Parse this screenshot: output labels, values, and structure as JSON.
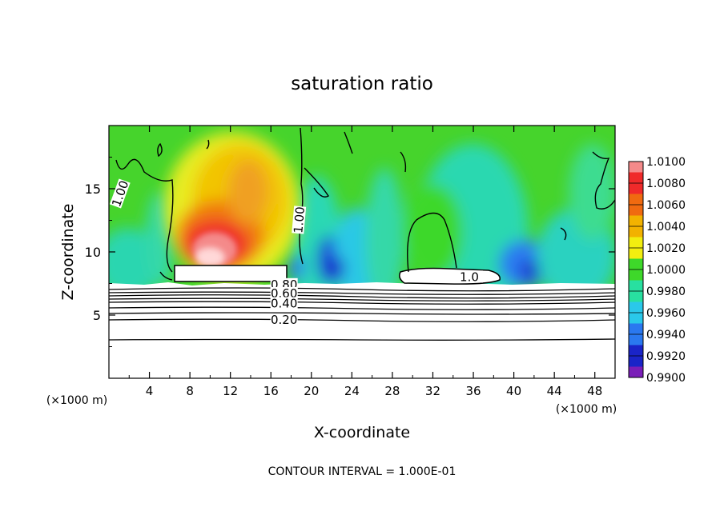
{
  "chart_data": {
    "type": "heatmap",
    "title": "saturation ratio",
    "xlabel": "X-coordinate",
    "ylabel": "Z-coordinate",
    "x_unit_left": "(×1000 m)",
    "x_unit_right": "(×1000 m)",
    "xlim": [
      0,
      50
    ],
    "ylim": [
      0,
      20
    ],
    "xticks": [
      "4",
      "8",
      "12",
      "16",
      "20",
      "24",
      "28",
      "32",
      "36",
      "40",
      "44",
      "48"
    ],
    "yticks": [
      "5",
      "10",
      "15"
    ],
    "footer": "CONTOUR INTERVAL = 1.000E-01",
    "colorbar": {
      "labels": [
        "1.0100",
        "1.0080",
        "1.0060",
        "1.0040",
        "1.0020",
        "1.0000",
        "0.9980",
        "0.9960",
        "0.9940",
        "0.9920",
        "0.9900"
      ],
      "colors": [
        "#f48a8a",
        "#f02a2a",
        "#f06a10",
        "#f2b200",
        "#f2ee10",
        "#3ed82a",
        "#28e0a0",
        "#2ac8ea",
        "#2a78f0",
        "#1a24c8",
        "#7a1eb8"
      ]
    },
    "contour_labels": [
      {
        "text": "1.00",
        "x": 1.5,
        "y": 14.5,
        "rot": -70
      },
      {
        "text": "1.00",
        "x": 19.2,
        "y": 12.5,
        "rot": -85
      },
      {
        "text": "1.0",
        "x": 35.6,
        "y": 7.7,
        "rot": 0
      },
      {
        "text": "0.80",
        "x": 17.3,
        "y": 7.1,
        "rot": 0
      },
      {
        "text": "0.60",
        "x": 17.3,
        "y": 6.4,
        "rot": 0
      },
      {
        "text": "0.40",
        "x": 17.3,
        "y": 5.6,
        "rot": 0
      },
      {
        "text": "0.20",
        "x": 17.3,
        "y": 4.3,
        "rot": 0
      }
    ]
  }
}
